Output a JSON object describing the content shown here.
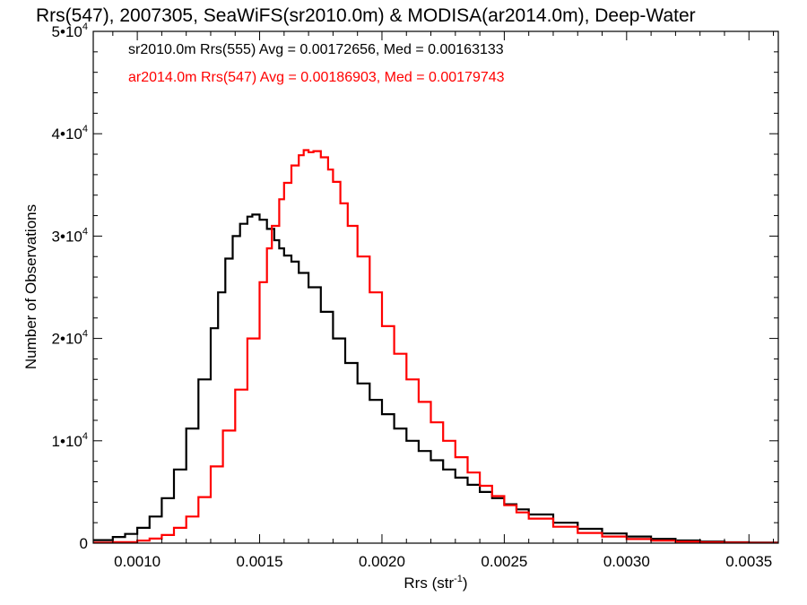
{
  "chart_data": {
    "type": "line",
    "title": "Rrs(547), 2007305, SeaWiFS(sr2010.0m) & MODISA(ar2014.0m), Deep-Water",
    "xlabel": "Rrs (str",
    "xlabel_sup": "-1",
    "xlabel_end": ")",
    "ylabel": "Number of Observations",
    "xlim": [
      0.00082,
      0.00362
    ],
    "ylim": [
      0,
      50000
    ],
    "x_ticks": [
      {
        "value": 0.001,
        "label": "0.0010"
      },
      {
        "value": 0.0015,
        "label": "0.0015"
      },
      {
        "value": 0.002,
        "label": "0.0020"
      },
      {
        "value": 0.0025,
        "label": "0.0025"
      },
      {
        "value": 0.003,
        "label": "0.0030"
      },
      {
        "value": 0.0035,
        "label": "0.0035"
      }
    ],
    "y_ticks": [
      {
        "value": 0,
        "mant": "0",
        "exp": ""
      },
      {
        "value": 10000,
        "mant": "1•10",
        "exp": "4"
      },
      {
        "value": 20000,
        "mant": "2•10",
        "exp": "4"
      },
      {
        "value": 30000,
        "mant": "3•10",
        "exp": "4"
      },
      {
        "value": 40000,
        "mant": "4•10",
        "exp": "4"
      },
      {
        "value": 50000,
        "mant": "5•10",
        "exp": "4"
      }
    ],
    "grid": false,
    "legend_position": "top-left",
    "series": [
      {
        "name": "sr2010.0m Rrs(555) Avg = 0.00172656, Med = 0.00163133",
        "color": "#000000",
        "points": [
          [
            0.00082,
            300
          ],
          [
            0.0009,
            600
          ],
          [
            0.00095,
            900
          ],
          [
            0.001,
            1500
          ],
          [
            0.00105,
            2600
          ],
          [
            0.0011,
            4400
          ],
          [
            0.00115,
            7200
          ],
          [
            0.0012,
            11200
          ],
          [
            0.00125,
            16000
          ],
          [
            0.0013,
            21000
          ],
          [
            0.00133,
            24500
          ],
          [
            0.00136,
            27800
          ],
          [
            0.00139,
            30000
          ],
          [
            0.00142,
            31200
          ],
          [
            0.00145,
            31900
          ],
          [
            0.00147,
            32100
          ],
          [
            0.0015,
            31600
          ],
          [
            0.00153,
            30700
          ],
          [
            0.00156,
            29600
          ],
          [
            0.00158,
            28800
          ],
          [
            0.0016,
            28100
          ],
          [
            0.00163,
            27500
          ],
          [
            0.00166,
            26400
          ],
          [
            0.0017,
            25000
          ],
          [
            0.00175,
            22600
          ],
          [
            0.0018,
            20000
          ],
          [
            0.00185,
            17600
          ],
          [
            0.0019,
            15600
          ],
          [
            0.00195,
            14000
          ],
          [
            0.002,
            12600
          ],
          [
            0.00205,
            11200
          ],
          [
            0.0021,
            10000
          ],
          [
            0.00215,
            9000
          ],
          [
            0.0022,
            8100
          ],
          [
            0.00225,
            7200
          ],
          [
            0.0023,
            6400
          ],
          [
            0.00235,
            5700
          ],
          [
            0.0024,
            5000
          ],
          [
            0.00245,
            4400
          ],
          [
            0.0025,
            3800
          ],
          [
            0.00255,
            3300
          ],
          [
            0.0026,
            2800
          ],
          [
            0.0027,
            2000
          ],
          [
            0.0028,
            1400
          ],
          [
            0.0029,
            950
          ],
          [
            0.003,
            650
          ],
          [
            0.0031,
            420
          ],
          [
            0.0032,
            260
          ],
          [
            0.0033,
            160
          ],
          [
            0.0034,
            90
          ],
          [
            0.0035,
            50
          ],
          [
            0.00362,
            20
          ]
        ]
      },
      {
        "name": "ar2014.0m Rrs(547) Avg = 0.00186903, Med = 0.00179743",
        "color": "#ff0000",
        "points": [
          [
            0.00082,
            50
          ],
          [
            0.0009,
            100
          ],
          [
            0.001,
            250
          ],
          [
            0.00105,
            450
          ],
          [
            0.0011,
            800
          ],
          [
            0.00115,
            1500
          ],
          [
            0.0012,
            2600
          ],
          [
            0.00125,
            4500
          ],
          [
            0.0013,
            7500
          ],
          [
            0.00135,
            11000
          ],
          [
            0.0014,
            15000
          ],
          [
            0.00145,
            20000
          ],
          [
            0.0015,
            25500
          ],
          [
            0.00153,
            28800
          ],
          [
            0.00155,
            31000
          ],
          [
            0.00158,
            33600
          ],
          [
            0.0016,
            35200
          ],
          [
            0.00163,
            36900
          ],
          [
            0.00166,
            37900
          ],
          [
            0.00168,
            38400
          ],
          [
            0.0017,
            38200
          ],
          [
            0.00172,
            38300
          ],
          [
            0.00175,
            37700
          ],
          [
            0.00178,
            36500
          ],
          [
            0.0018,
            35300
          ],
          [
            0.00183,
            33200
          ],
          [
            0.00186,
            31000
          ],
          [
            0.0019,
            28000
          ],
          [
            0.00195,
            24500
          ],
          [
            0.002,
            21200
          ],
          [
            0.00205,
            18500
          ],
          [
            0.0021,
            16000
          ],
          [
            0.00215,
            13800
          ],
          [
            0.0022,
            11800
          ],
          [
            0.00225,
            10000
          ],
          [
            0.0023,
            8400
          ],
          [
            0.00235,
            6900
          ],
          [
            0.0024,
            5600
          ],
          [
            0.00245,
            4600
          ],
          [
            0.0025,
            3700
          ],
          [
            0.00255,
            3000
          ],
          [
            0.0026,
            2400
          ],
          [
            0.0027,
            1600
          ],
          [
            0.0028,
            1000
          ],
          [
            0.0029,
            650
          ],
          [
            0.003,
            400
          ],
          [
            0.0031,
            250
          ],
          [
            0.0032,
            150
          ],
          [
            0.0033,
            90
          ],
          [
            0.0034,
            50
          ],
          [
            0.0035,
            30
          ],
          [
            0.00362,
            15
          ]
        ]
      }
    ]
  }
}
